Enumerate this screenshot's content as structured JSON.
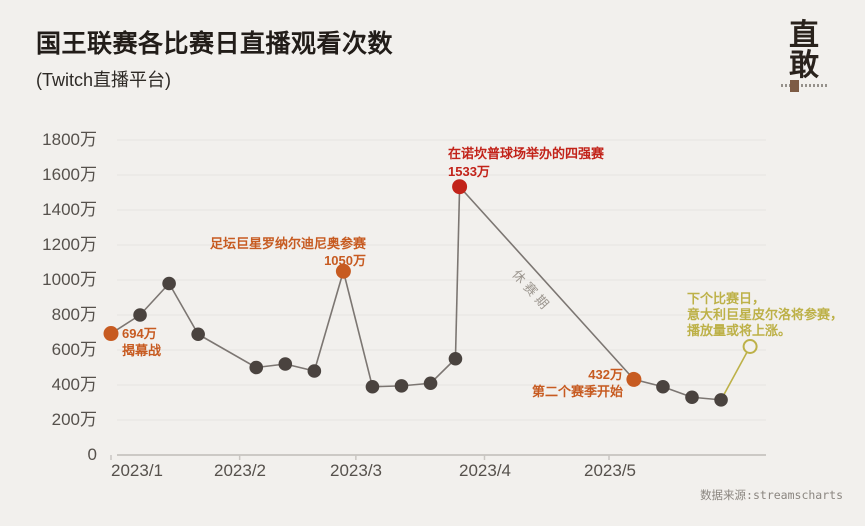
{
  "header": {
    "title": "国王联赛各比赛日直播观看次数",
    "subtitle": "(Twitch直播平台)",
    "logo_top": "直",
    "logo_bottom": "敢"
  },
  "source": "数据来源:streamscharts",
  "colors": {
    "bg": "#f2f0ed",
    "ink": "#221d19",
    "axis": "#56514c",
    "grid": "#e7e4e1",
    "baseline": "#bfbcb8",
    "tick": "#c9c6c2",
    "line": "#7c7672",
    "dot": "#4a433f",
    "orange": "#c75b21",
    "red": "#c2231a",
    "olive": "#bdb148",
    "offseason": "#9c968f",
    "source": "#8b8680"
  },
  "chart_data": {
    "type": "line",
    "title": "国王联赛各比赛日直播观看次数",
    "subtitle": "(Twitch直播平台)",
    "unit": "万",
    "ylim": [
      0,
      1800
    ],
    "grid": "horizontal",
    "legend_position": "none",
    "y_ticks": [
      {
        "value": 1800,
        "label": "1800万"
      },
      {
        "value": 1600,
        "label": "1600万"
      },
      {
        "value": 1400,
        "label": "1400万"
      },
      {
        "value": 1200,
        "label": "1200万"
      },
      {
        "value": 1000,
        "label": "1000万"
      },
      {
        "value": 800,
        "label": "800万"
      },
      {
        "value": 600,
        "label": "600万"
      },
      {
        "value": 400,
        "label": "400万"
      },
      {
        "value": 200,
        "label": "200万"
      },
      {
        "value": 0,
        "label": "0"
      }
    ],
    "x_ticks": [
      {
        "label": "2023/1",
        "month_start_day": 0
      },
      {
        "label": "2023/2",
        "month_start_day": 31
      },
      {
        "label": "2023/3",
        "month_start_day": 59
      },
      {
        "label": "2023/4",
        "month_start_day": 90
      },
      {
        "label": "2023/5",
        "month_start_day": 120
      }
    ],
    "points": [
      {
        "date": "2023/1/1",
        "day": 0,
        "value": 694,
        "kind": "highlight-orange",
        "note": "揭幕战"
      },
      {
        "date": "2023/1/8",
        "day": 7,
        "value": 800,
        "kind": "normal"
      },
      {
        "date": "2023/1/15",
        "day": 14,
        "value": 980,
        "kind": "normal"
      },
      {
        "date": "2023/1/22",
        "day": 21,
        "value": 690,
        "kind": "normal"
      },
      {
        "date": "2023/2/5",
        "day": 35,
        "value": 500,
        "kind": "normal"
      },
      {
        "date": "2023/2/12",
        "day": 42,
        "value": 520,
        "kind": "normal"
      },
      {
        "date": "2023/2/19",
        "day": 49,
        "value": 480,
        "kind": "normal"
      },
      {
        "date": "2023/2/26",
        "day": 56,
        "value": 1050,
        "kind": "highlight-orange",
        "note": "足坛巨星罗纳尔迪尼奥参赛"
      },
      {
        "date": "2023/3/5",
        "day": 63,
        "value": 390,
        "kind": "normal"
      },
      {
        "date": "2023/3/12",
        "day": 70,
        "value": 395,
        "kind": "normal"
      },
      {
        "date": "2023/3/19",
        "day": 77,
        "value": 410,
        "kind": "normal"
      },
      {
        "date": "2023/3/25",
        "day": 83,
        "value": 550,
        "kind": "normal"
      },
      {
        "date": "2023/3/26",
        "day": 84,
        "value": 1533,
        "kind": "highlight-red",
        "note": "在诺坎普球场举办的四强赛"
      },
      {
        "date": "2023/5/7",
        "day": 126,
        "value": 432,
        "kind": "highlight-orange",
        "note": "第二个赛季开始"
      },
      {
        "date": "2023/5/14",
        "day": 133,
        "value": 390,
        "kind": "normal"
      },
      {
        "date": "2023/5/21",
        "day": 140,
        "value": 330,
        "kind": "normal"
      },
      {
        "date": "2023/5/28",
        "day": 147,
        "value": 315,
        "kind": "normal"
      },
      {
        "date": "2023/6/4",
        "day": 154,
        "value": 620,
        "kind": "forecast"
      }
    ],
    "annotations": {
      "opener": {
        "line1": "694万",
        "line2": "揭幕战"
      },
      "ronaldinho": {
        "line1": "足坛巨星罗纳尔迪尼奥参赛",
        "line2": "1050万"
      },
      "semifinal": {
        "line1": "在诺坎普球场举办的四强赛",
        "line2": "1533万"
      },
      "offseason": "休赛期",
      "season2": {
        "line1": "432万",
        "line2": "第二个赛季开始"
      },
      "forecast": {
        "line1": "下个比赛日，",
        "line2": "意大利巨星皮尔洛将参赛，",
        "line3": "播放量或将上涨。"
      }
    }
  }
}
